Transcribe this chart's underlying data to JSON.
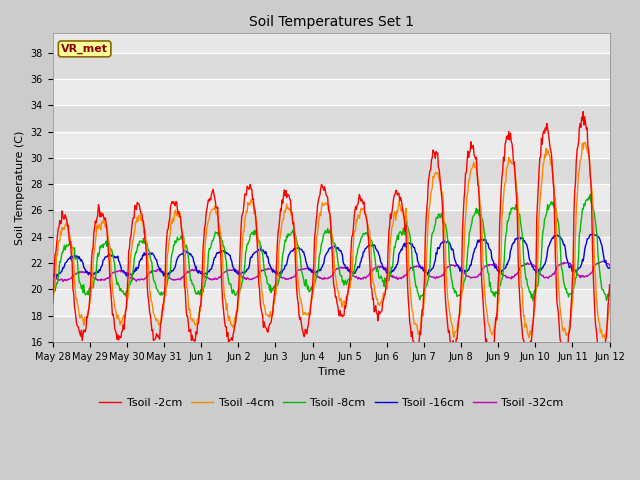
{
  "title": "Soil Temperatures Set 1",
  "xlabel": "Time",
  "ylabel": "Soil Temperature (C)",
  "ylim": [
    16,
    39.5
  ],
  "yticks": [
    16,
    18,
    20,
    22,
    24,
    26,
    28,
    30,
    32,
    34,
    36,
    38
  ],
  "xtick_labels": [
    "May 28",
    "May 29",
    "May 30",
    "May 31",
    "Jun 1",
    "Jun 2",
    "Jun 3",
    "Jun 4",
    "Jun 5",
    "Jun 6",
    "Jun 7",
    "Jun 8",
    "Jun 9",
    "Jun 10",
    "Jun 11",
    "Jun 12"
  ],
  "annotation_text": "VR_met",
  "annotation_color": "#8B0000",
  "annotation_bg": "#FFFF99",
  "colors": {
    "Tsoil -2cm": "#FF0000",
    "Tsoil -4cm": "#FF8800",
    "Tsoil -8cm": "#00BB00",
    "Tsoil -16cm": "#0000DD",
    "Tsoil -32cm": "#BB00BB"
  },
  "fig_bg": "#CCCCCC",
  "plot_bg": "#E8E8E8",
  "grid_color": "#FFFFFF",
  "title_fontsize": 10,
  "label_fontsize": 8,
  "tick_fontsize": 7,
  "legend_fontsize": 8
}
